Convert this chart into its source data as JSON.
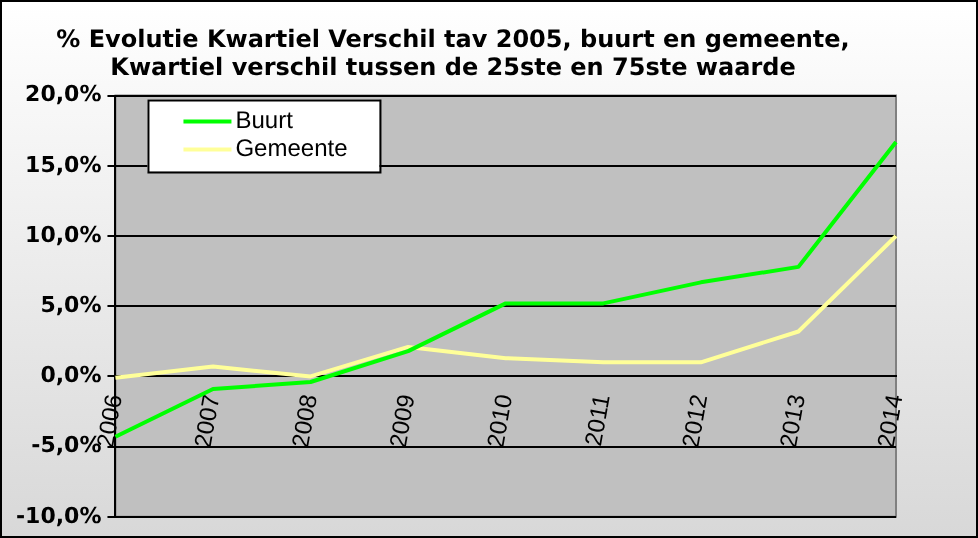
{
  "chart_data": {
    "type": "line",
    "title": "% Evolutie Kwartiel Verschil tav 2005, buurt en gemeente,\nKwartiel verschil tussen de 25ste en 75ste waarde",
    "categories": [
      "2006",
      "2007",
      "2008",
      "2009",
      "2010",
      "2011",
      "2012",
      "2013",
      "2014"
    ],
    "series": [
      {
        "name": "Buurt",
        "color": "#00ff00",
        "values": [
          -4.3,
          -0.9,
          -0.4,
          1.8,
          5.2,
          5.2,
          6.7,
          7.8,
          16.7
        ]
      },
      {
        "name": "Gemeente",
        "color": "#ffff99",
        "values": [
          -0.1,
          0.7,
          0.0,
          2.1,
          1.3,
          1.0,
          1.0,
          3.2,
          10.0
        ]
      }
    ],
    "ylim": [
      -10,
      20
    ],
    "yticks": [
      {
        "value": -10,
        "label": "-10,0%"
      },
      {
        "value": -5,
        "label": "-5,0%"
      },
      {
        "value": 0,
        "label": "0,0%"
      },
      {
        "value": 5,
        "label": "5,0%"
      },
      {
        "value": 10,
        "label": "10,0%"
      },
      {
        "value": 15,
        "label": "15,0%"
      },
      {
        "value": 20,
        "label": "20,0%"
      }
    ],
    "grid": "y",
    "legend": "top left",
    "marker": "none",
    "line_style": "solid"
  }
}
